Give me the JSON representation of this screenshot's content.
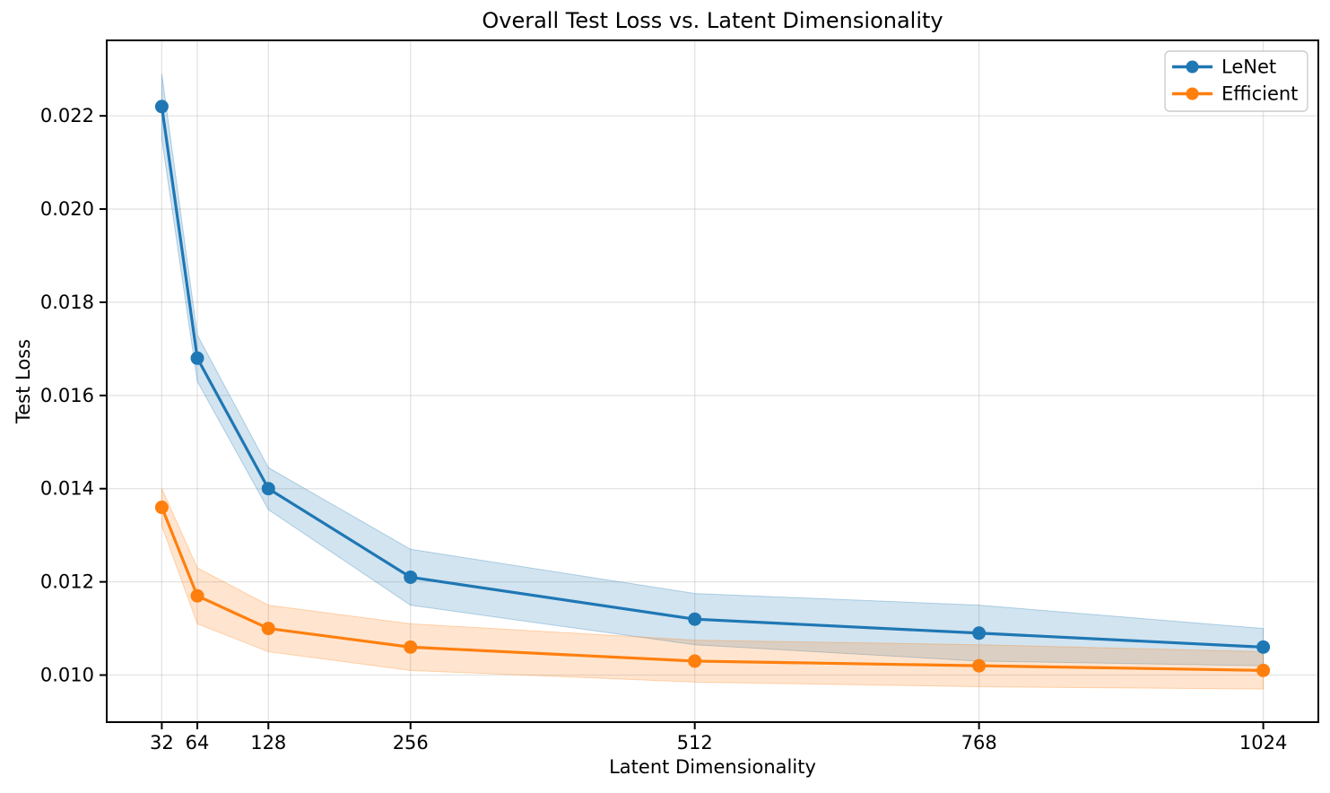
{
  "chart_data": {
    "type": "line",
    "title": "Overall Test Loss vs. Latent Dimensionality",
    "xlabel": "Latent Dimensionality",
    "ylabel": "Test Loss",
    "x": [
      32,
      64,
      128,
      256,
      512,
      768,
      1024
    ],
    "xtick_labels": [
      "32",
      "64",
      "128",
      "256",
      "512",
      "768",
      "1024"
    ],
    "ytick_values": [
      0.01,
      0.012,
      0.014,
      0.016,
      0.018,
      0.02,
      0.022
    ],
    "ytick_labels": [
      "0.010",
      "0.012",
      "0.014",
      "0.016",
      "0.018",
      "0.020",
      "0.022"
    ],
    "xlim": [
      -17.6,
      1073.6
    ],
    "ylim": [
      0.00899,
      0.02362
    ],
    "grid": true,
    "legend_position": "upper right",
    "band_opacity": 0.2,
    "series": [
      {
        "name": "LeNet",
        "color": "#1f77b4",
        "values": [
          0.0222,
          0.0168,
          0.014,
          0.0121,
          0.0112,
          0.0109,
          0.0106
        ],
        "band_halfwidth": [
          0.0007,
          0.0005,
          0.00045,
          0.0006,
          0.00055,
          0.0006,
          0.0004
        ]
      },
      {
        "name": "Efficient",
        "color": "#ff7f0e",
        "values": [
          0.0136,
          0.0117,
          0.011,
          0.0106,
          0.0103,
          0.0102,
          0.0101
        ],
        "band_halfwidth": [
          0.0004,
          0.0006,
          0.0005,
          0.0005,
          0.00045,
          0.00045,
          0.0004
        ]
      }
    ],
    "colors": {
      "grid": "#b0b0b0",
      "spine": "#000000",
      "text": "#000000",
      "legend_border": "#cccccc",
      "background": "#ffffff"
    }
  }
}
